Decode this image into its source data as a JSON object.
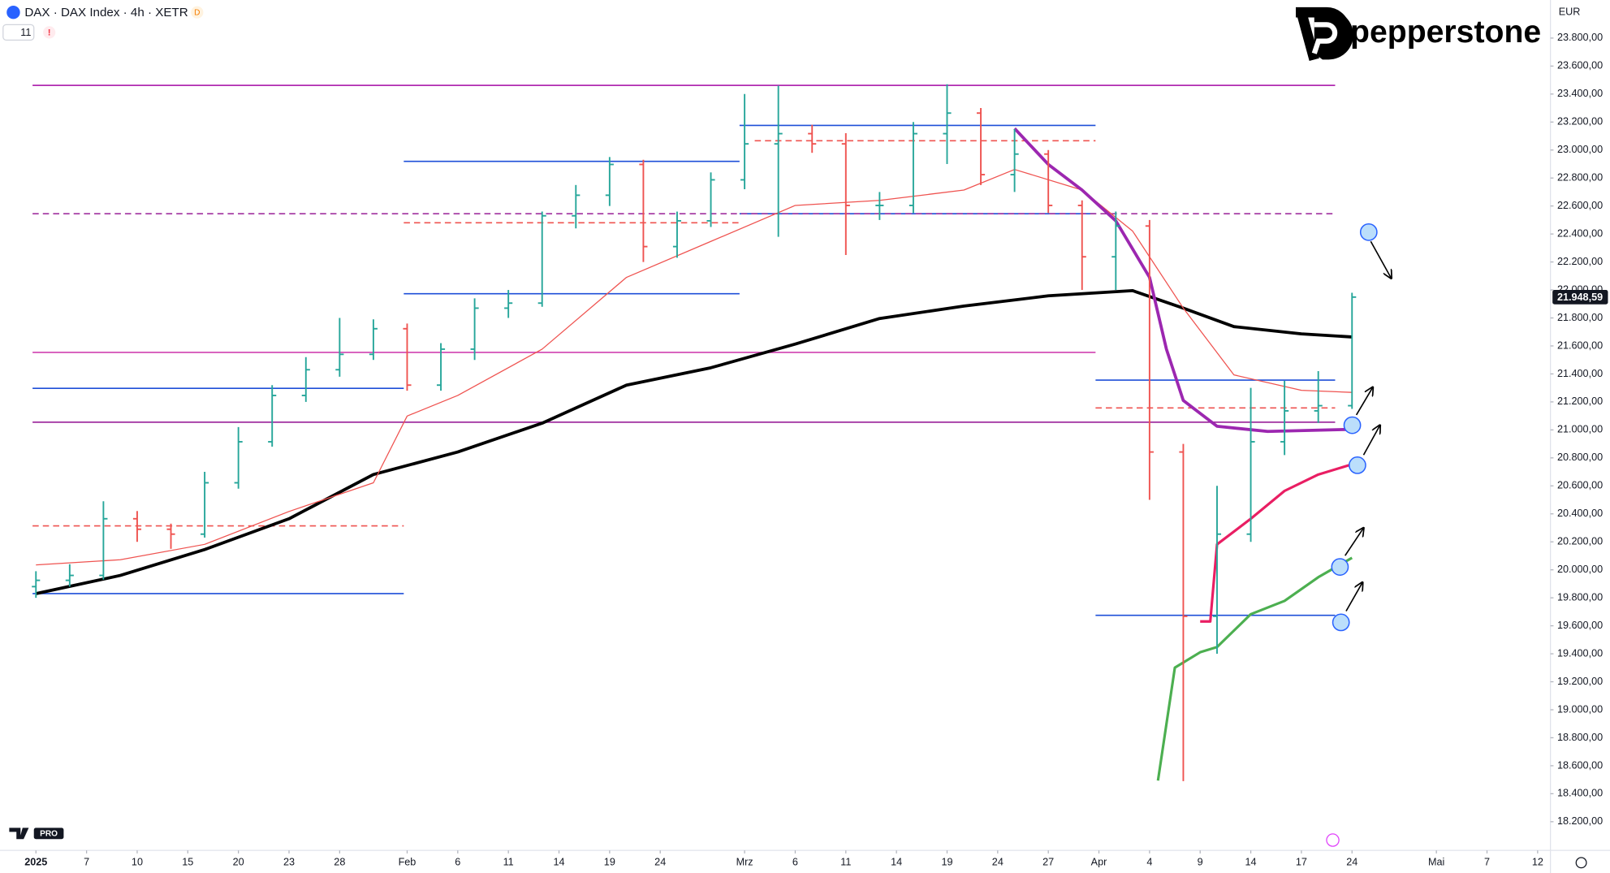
{
  "header": {
    "title": "DAX · DAX Index · 4h · XETR",
    "badge": "D",
    "indicator_count": "11",
    "alert": "!",
    "brand": "pepperstone",
    "currency": "EUR",
    "logo_suffix": "PRO"
  },
  "chart_data": {
    "type": "ohlc",
    "xlim": [
      -2.13,
      89.76
    ],
    "ylim": [
      17995,
      24072
    ],
    "xticks": [
      {
        "value": 0,
        "label": "2025"
      },
      {
        "value": 3,
        "label": "7"
      },
      {
        "value": 6,
        "label": "10"
      },
      {
        "value": 9,
        "label": "15"
      },
      {
        "value": 12,
        "label": "20"
      },
      {
        "value": 15,
        "label": "23"
      },
      {
        "value": 18,
        "label": "28"
      },
      {
        "value": 22,
        "label": "Feb"
      },
      {
        "value": 25,
        "label": "6"
      },
      {
        "value": 28,
        "label": "11"
      },
      {
        "value": 31,
        "label": "14"
      },
      {
        "value": 34,
        "label": "19"
      },
      {
        "value": 37,
        "label": "24"
      },
      {
        "value": 42,
        "label": "Mrz"
      },
      {
        "value": 45,
        "label": "6"
      },
      {
        "value": 48,
        "label": "11"
      },
      {
        "value": 51,
        "label": "14"
      },
      {
        "value": 54,
        "label": "19"
      },
      {
        "value": 57,
        "label": "24"
      },
      {
        "value": 60,
        "label": "27"
      },
      {
        "value": 63,
        "label": "Apr"
      },
      {
        "value": 66,
        "label": "4"
      },
      {
        "value": 69,
        "label": "9"
      },
      {
        "value": 72,
        "label": "14"
      },
      {
        "value": 75,
        "label": "17"
      },
      {
        "value": 78,
        "label": "24"
      },
      {
        "value": 83,
        "label": "Mai"
      },
      {
        "value": 86,
        "label": "7"
      },
      {
        "value": 89,
        "label": "12"
      }
    ],
    "yticks": [
      {
        "value": 18200,
        "label": "18.200,00"
      },
      {
        "value": 18400,
        "label": "18.400,00"
      },
      {
        "value": 18600,
        "label": "18.600,00"
      },
      {
        "value": 18800,
        "label": "18.800,00"
      },
      {
        "value": 19000,
        "label": "19.000,00"
      },
      {
        "value": 19200,
        "label": "19.200,00"
      },
      {
        "value": 19400,
        "label": "19.400,00"
      },
      {
        "value": 19600,
        "label": "19.600,00"
      },
      {
        "value": 19800,
        "label": "19.800,00"
      },
      {
        "value": 20000,
        "label": "20.000,00"
      },
      {
        "value": 20200,
        "label": "20.200,00"
      },
      {
        "value": 20400,
        "label": "20.400,00"
      },
      {
        "value": 20600,
        "label": "20.600,00"
      },
      {
        "value": 20800,
        "label": "20.800,00"
      },
      {
        "value": 21000,
        "label": "21.000,00"
      },
      {
        "value": 21200,
        "label": "21.200,00"
      },
      {
        "value": 21400,
        "label": "21.400,00"
      },
      {
        "value": 21600,
        "label": "21.600,00"
      },
      {
        "value": 21800,
        "label": "21.800,00"
      },
      {
        "value": 22000,
        "label": "22.000,00"
      },
      {
        "value": 22200,
        "label": "22.200,00"
      },
      {
        "value": 22400,
        "label": "22.400,00"
      },
      {
        "value": 22600,
        "label": "22.600,00"
      },
      {
        "value": 22800,
        "label": "22.800,00"
      },
      {
        "value": 23000,
        "label": "23.000,00"
      },
      {
        "value": 23200,
        "label": "23.200,00"
      },
      {
        "value": 23400,
        "label": "23.400,00"
      },
      {
        "value": 23600,
        "label": "23.600,00"
      },
      {
        "value": 23800,
        "label": "23.800,00"
      }
    ],
    "up_color": "#26a69a",
    "down_color": "#ef5350",
    "x": [
      0,
      2,
      4,
      6,
      8,
      10,
      12,
      14,
      16,
      18,
      20,
      22,
      24,
      26,
      28,
      30,
      32,
      34,
      36,
      38,
      40,
      42,
      44,
      46,
      48,
      50,
      52,
      54,
      56,
      58,
      60,
      62,
      64,
      66,
      68,
      70,
      72,
      74,
      76,
      78
    ],
    "open": [
      19880,
      19925,
      19960,
      20365,
      20290,
      20255,
      20622,
      20915,
      21246,
      21430,
      21540,
      21723,
      21320,
      21577,
      21870,
      21906,
      22530,
      22677,
      22897,
      22310,
      22494,
      22787,
      23044,
      23117,
      23044,
      22604,
      22604,
      23117,
      23264,
      22824,
      22971,
      22604,
      22237,
      22457,
      20842,
      19668,
      20255,
      20915,
      21136,
      21173
    ],
    "high": [
      19990,
      20040,
      20490,
      20420,
      20330,
      20700,
      21020,
      21320,
      21520,
      21800,
      21790,
      21760,
      21620,
      21940,
      22000,
      22560,
      22750,
      22950,
      22930,
      22560,
      22840,
      23400,
      23460,
      23180,
      23120,
      22700,
      23200,
      23470,
      23300,
      23150,
      23000,
      22640,
      22560,
      22500,
      20900,
      20600,
      21300,
      21350,
      21420,
      21980
    ],
    "low": [
      19800,
      19880,
      19930,
      20200,
      20150,
      20230,
      20580,
      20880,
      21200,
      21380,
      21500,
      21280,
      21280,
      21500,
      21800,
      21880,
      22440,
      22600,
      22200,
      22230,
      22450,
      22720,
      22380,
      22980,
      22250,
      22500,
      22550,
      22900,
      22750,
      22700,
      22550,
      22000,
      22000,
      20500,
      18490,
      19400,
      20200,
      20820,
      21050,
      21150
    ],
    "close": [
      19925,
      19960,
      20365,
      20290,
      20255,
      20622,
      20915,
      21246,
      21430,
      21540,
      21723,
      21320,
      21577,
      21870,
      21906,
      22530,
      22677,
      22897,
      22310,
      22494,
      22787,
      23044,
      23117,
      23044,
      22604,
      22604,
      23117,
      23264,
      22824,
      22971,
      22604,
      22237,
      22457,
      20842,
      19668,
      20255,
      20915,
      21136,
      21173,
      21949
    ],
    "last_price": {
      "value": 21948.59,
      "label": "21.948,59"
    },
    "lines": [
      {
        "color": "#000000",
        "width": 3,
        "x": [
          0,
          5,
          10,
          15,
          20,
          25,
          30,
          35,
          40,
          45,
          50,
          55,
          60,
          65,
          68,
          71,
          75,
          78
        ],
        "values": [
          19830,
          19960,
          20145,
          20365,
          20681,
          20842,
          21048,
          21320,
          21444,
          21613,
          21796,
          21885,
          21958,
          21995,
          21870,
          21738,
          21686,
          21664
        ]
      },
      {
        "color": "#ef5350",
        "width": 1,
        "x": [
          0,
          5,
          10,
          15,
          20,
          22,
          25,
          30,
          35,
          40,
          45,
          50,
          55,
          58,
          62,
          65,
          68,
          71,
          75,
          78
        ],
        "values": [
          20035,
          20072,
          20182,
          20417,
          20622,
          21099,
          21246,
          21577,
          22090,
          22347,
          22604,
          22640,
          22714,
          22861,
          22714,
          22420,
          21870,
          21393,
          21283,
          21268
        ]
      },
      {
        "color": "#9c27b0",
        "width": 3,
        "x": [
          58,
          60,
          62,
          64,
          66,
          67,
          68,
          70,
          73,
          78
        ],
        "values": [
          23154,
          22897,
          22714,
          22494,
          22090,
          21577,
          21210,
          21026,
          20989,
          21004
        ]
      },
      {
        "color": "#e91e63",
        "width": 2.5,
        "x": [
          69,
          69.6,
          70,
          72,
          74,
          76,
          78
        ],
        "values": [
          19631,
          19631,
          20182,
          20365,
          20564,
          20681,
          20754
        ]
      },
      {
        "color": "#4caf50",
        "width": 2.5,
        "x": [
          66.5,
          67.5,
          69,
          70,
          72,
          74,
          76,
          78
        ],
        "values": [
          18494,
          19301,
          19411,
          19448,
          19683,
          19778,
          19947,
          20086
        ]
      }
    ],
    "levels": [
      {
        "price": 23462,
        "from": -0.2,
        "to": 77,
        "color": "#b02ab0",
        "style": "solid"
      },
      {
        "price": 23176,
        "from": 41.7,
        "to": 62.8,
        "color": "#1e4fd8",
        "style": "solid"
      },
      {
        "price": 22919,
        "from": 21.8,
        "to": 41.7,
        "color": "#1e4fd8",
        "style": "solid"
      },
      {
        "price": 21973,
        "from": 21.8,
        "to": 41.7,
        "color": "#1e4fd8",
        "style": "solid"
      },
      {
        "price": 22545,
        "from": 41.7,
        "to": 62.8,
        "color": "#1e4fd8",
        "style": "solid"
      },
      {
        "price": 22545,
        "from": -0.2,
        "to": 77,
        "color": "#a0309f",
        "style": "dashed"
      },
      {
        "price": 21554,
        "from": -0.2,
        "to": 62.8,
        "color": "#d040b0",
        "style": "solid"
      },
      {
        "price": 21055,
        "from": -0.2,
        "to": 77,
        "color": "#a030a0",
        "style": "solid"
      },
      {
        "price": 21297,
        "from": -0.2,
        "to": 21.8,
        "color": "#1e4fd8",
        "style": "solid"
      },
      {
        "price": 21356,
        "from": 62.8,
        "to": 77,
        "color": "#1e4fd8",
        "style": "solid"
      },
      {
        "price": 19830,
        "from": -0.2,
        "to": 21.8,
        "color": "#1e4fd8",
        "style": "solid"
      },
      {
        "price": 19675,
        "from": 62.8,
        "to": 77,
        "color": "#1e4fd8",
        "style": "solid"
      },
      {
        "price": 23066,
        "from": 42.6,
        "to": 62.8,
        "color": "#ef5350",
        "style": "dashed"
      },
      {
        "price": 20314,
        "from": -0.2,
        "to": 21.8,
        "color": "#ef5350",
        "style": "dashed"
      },
      {
        "price": 21157,
        "from": 62.8,
        "to": 77,
        "color": "#ef5350",
        "style": "dashed"
      },
      {
        "price": 22480,
        "from": 21.8,
        "to": 41.7,
        "color": "#ef5350",
        "style": "dashed"
      }
    ]
  }
}
